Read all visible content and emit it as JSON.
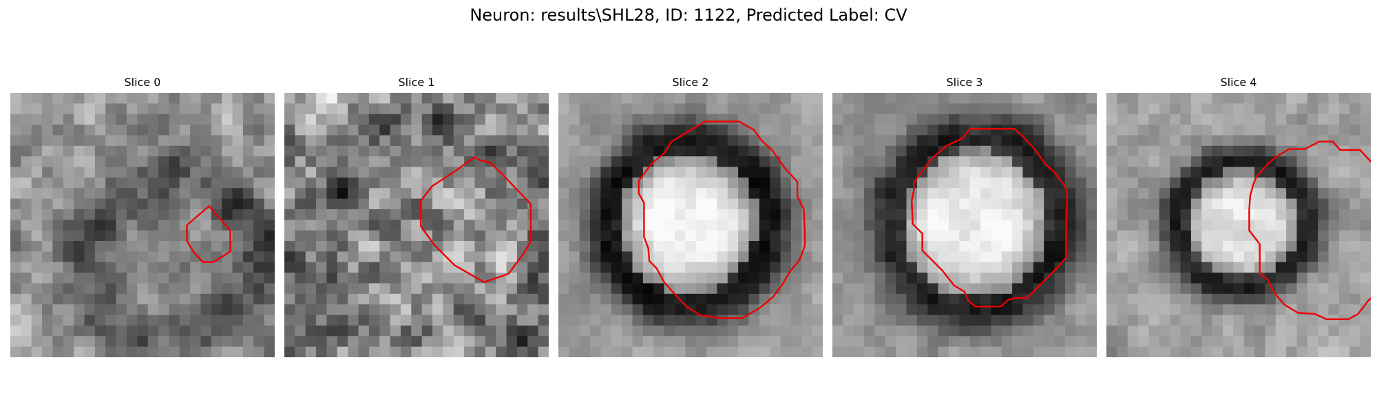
{
  "figure": {
    "title": "Neuron: results\\SHL28, ID: 1122, Predicted Label: CV"
  },
  "panels": [
    {
      "label": "Slice 0",
      "contour": [
        [
          7.9,
          0
        ],
        [
          8.8,
          1
        ],
        [
          8.8,
          3
        ],
        [
          7.2,
          4
        ],
        [
          6.2,
          4
        ],
        [
          5.3,
          3
        ],
        [
          4.7,
          2
        ],
        [
          4.7,
          0.5
        ],
        [
          6.8,
          -1.3
        ]
      ]
    },
    {
      "label": "Slice 1",
      "contour": [
        [
          8.8,
          -4.1
        ],
        [
          11.3,
          -1.5
        ],
        [
          11.3,
          2
        ],
        [
          10.7,
          3.1
        ],
        [
          9.2,
          5.1
        ],
        [
          6.9,
          5.9
        ],
        [
          5.5,
          5.1
        ],
        [
          4.1,
          4.3
        ],
        [
          2.2,
          2.4
        ],
        [
          0.9,
          0.6
        ],
        [
          0.9,
          -1.8
        ],
        [
          2,
          -3.2
        ],
        [
          4,
          -4.5
        ],
        [
          5.1,
          -5.3
        ],
        [
          6,
          -5.9
        ],
        [
          6.6,
          -5.6
        ],
        [
          7.5,
          -5.4
        ]
      ]
    },
    {
      "label": "Slice 2",
      "contour": [
        [
          8.2,
          -6.6
        ],
        [
          9.4,
          -4.9
        ],
        [
          10.6,
          -3.6
        ],
        [
          10.6,
          -2.2
        ],
        [
          11.2,
          -1
        ],
        [
          11.3,
          1.1
        ],
        [
          11.3,
          2.5
        ],
        [
          10.8,
          3.8
        ],
        [
          9.9,
          4.9
        ],
        [
          9.2,
          6.1
        ],
        [
          8.3,
          7.3
        ],
        [
          7.1,
          8.3
        ],
        [
          5.4,
          9.3
        ],
        [
          3.2,
          9.3
        ],
        [
          1.4,
          9
        ],
        [
          0.1,
          8.2
        ],
        [
          -1.2,
          6.8
        ],
        [
          -2,
          5.9
        ],
        [
          -2.7,
          4.6
        ],
        [
          -3.4,
          3.9
        ],
        [
          -3.5,
          2.7
        ],
        [
          -3.9,
          1.6
        ],
        [
          -3.9,
          -0.6
        ],
        [
          -3.9,
          -1.6
        ],
        [
          -4.4,
          -2.5
        ],
        [
          -4.4,
          -3.7
        ],
        [
          -3.2,
          -5.3
        ],
        [
          -2,
          -6.3
        ],
        [
          -1.3,
          -7.4
        ],
        [
          0.5,
          -8.5
        ],
        [
          1.9,
          -9.3
        ],
        [
          5.1,
          -9.3
        ],
        [
          6.5,
          -8.5
        ],
        [
          7.2,
          -7.5
        ]
      ]
    },
    {
      "label": "Slice 3",
      "contour": [
        [
          8.9,
          -4.6
        ],
        [
          9.9,
          -3.3
        ],
        [
          10.2,
          -2.7
        ],
        [
          10.1,
          0.9
        ],
        [
          10.1,
          3.6
        ],
        [
          9.2,
          4.6
        ],
        [
          7.2,
          6.6
        ],
        [
          6.4,
          7.4
        ],
        [
          5.2,
          7.4
        ],
        [
          4.6,
          7.6
        ],
        [
          3.9,
          8.2
        ],
        [
          1.5,
          8.2
        ],
        [
          0.8,
          7.6
        ],
        [
          0.5,
          6.8
        ],
        [
          -0.5,
          6.2
        ],
        [
          -1.6,
          4.8
        ],
        [
          -3,
          3.4
        ],
        [
          -3.5,
          2.9
        ],
        [
          -3.5,
          1.3
        ],
        [
          -4.4,
          0.4
        ],
        [
          -4.5,
          -1.8
        ],
        [
          -4.3,
          -2.8
        ],
        [
          -4.3,
          -3.5
        ],
        [
          -3.8,
          -4.2
        ],
        [
          -2.6,
          -5.8
        ],
        [
          -1.2,
          -7
        ],
        [
          0.3,
          -7.7
        ],
        [
          1,
          -8.6
        ],
        [
          5.2,
          -8.6
        ],
        [
          6.1,
          -7.8
        ],
        [
          7.1,
          -6.7
        ],
        [
          8.2,
          -5.2
        ]
      ]
    },
    {
      "label": "Slice 4",
      "contour": [
        [
          14,
          -4.4
        ],
        [
          15.7,
          -2.4
        ],
        [
          15.7,
          -1.4
        ],
        [
          16.4,
          -1.1
        ],
        [
          16.7,
          -0.1
        ],
        [
          16.7,
          0.9
        ],
        [
          16.2,
          1.4
        ],
        [
          16.3,
          2.4
        ],
        [
          15.9,
          3.1
        ],
        [
          15.7,
          4
        ],
        [
          15.5,
          4.9
        ],
        [
          14.9,
          5.3
        ],
        [
          14.2,
          6.4
        ],
        [
          12.8,
          7.6
        ],
        [
          11.8,
          8.9
        ],
        [
          10.9,
          9.4
        ],
        [
          8.8,
          9.4
        ],
        [
          7.7,
          8.9
        ],
        [
          6.1,
          8.8
        ],
        [
          4.8,
          8
        ],
        [
          3.8,
          6.8
        ],
        [
          3.3,
          5.7
        ],
        [
          2.5,
          5.1
        ],
        [
          2.5,
          2.3
        ],
        [
          1.5,
          1
        ],
        [
          1.5,
          -0.9
        ],
        [
          1.6,
          -2.3
        ],
        [
          1.9,
          -3.4
        ],
        [
          2.2,
          -4.1
        ],
        [
          3.4,
          -5.4
        ],
        [
          4.1,
          -6
        ],
        [
          5.3,
          -6.7
        ],
        [
          6.8,
          -6.7
        ],
        [
          8.1,
          -7.4
        ],
        [
          9.4,
          -7.4
        ],
        [
          10.1,
          -6.6
        ],
        [
          12,
          -6.6
        ]
      ]
    }
  ]
}
